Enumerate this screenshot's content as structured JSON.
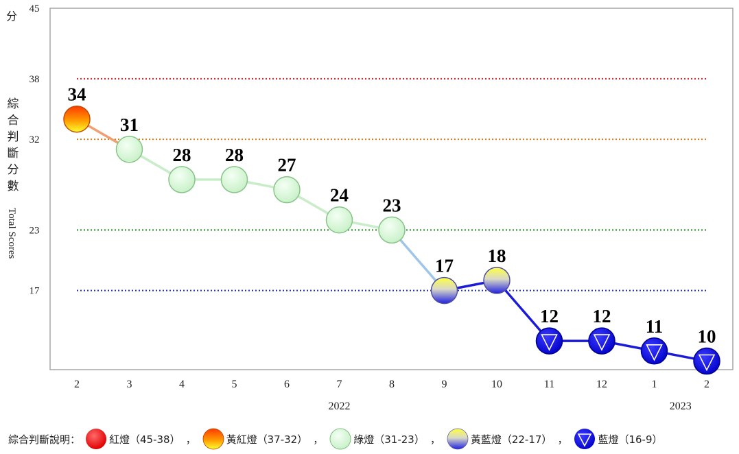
{
  "chart_data": {
    "type": "line",
    "ylabel_cn": "綜合判斷分數",
    "ylabel_en": "Total Scores",
    "unit": "分",
    "ylim": [
      10,
      45
    ],
    "yticks": [
      17,
      23,
      32,
      38,
      45
    ],
    "categories": [
      "2",
      "3",
      "4",
      "5",
      "6",
      "7",
      "8",
      "9",
      "10",
      "11",
      "12",
      "1",
      "2"
    ],
    "year_labels": [
      {
        "label": "2022",
        "index": 5
      },
      {
        "label": "2023",
        "index": 11.5
      }
    ],
    "values": [
      34,
      31,
      28,
      28,
      27,
      24,
      23,
      17,
      18,
      12,
      12,
      11,
      10
    ],
    "lights": [
      "yellow-red",
      "green",
      "green",
      "green",
      "green",
      "green",
      "green",
      "yellow-blue",
      "yellow-blue",
      "blue",
      "blue",
      "blue",
      "blue"
    ],
    "thresholds": [
      {
        "value": 38,
        "color": "#e0202a"
      },
      {
        "value": 32,
        "color": "#e07a10"
      },
      {
        "value": 23,
        "color": "#1f8a1f"
      },
      {
        "value": 17,
        "color": "#1f2fd0"
      }
    ],
    "colors": {
      "red": "#ff1a1a",
      "yellow_red": "#ff8a00",
      "green": "#d6f7d6",
      "yellow_blue": "#f3f06a",
      "blue": "#1010e0"
    }
  },
  "legend": {
    "title": "綜合判斷說明：",
    "items": [
      {
        "key": "red",
        "label": "紅燈（45-38）"
      },
      {
        "key": "yellow-red",
        "label": "黃紅燈（37-32）"
      },
      {
        "key": "green",
        "label": "綠燈（31-23）"
      },
      {
        "key": "yellow-blue",
        "label": "黃藍燈（22-17）"
      },
      {
        "key": "blue",
        "label": "藍燈（16-9）"
      }
    ],
    "separator": "，"
  }
}
